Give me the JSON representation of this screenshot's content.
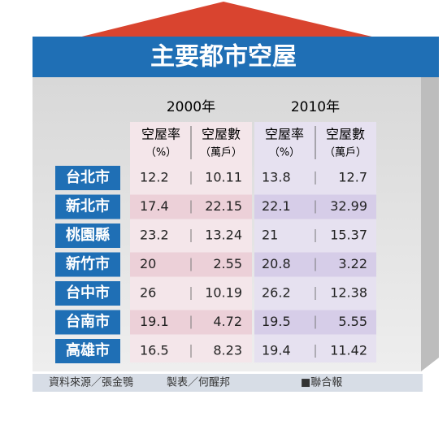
{
  "title": "主要都市空屋",
  "table": {
    "groups": [
      "2000年",
      "2010年"
    ],
    "columns": [
      {
        "name": "空屋率",
        "unit": "（%）"
      },
      {
        "name": "空屋數",
        "unit": "（萬戶）"
      },
      {
        "name": "空屋率",
        "unit": "（%）"
      },
      {
        "name": "空屋數",
        "unit": "（萬戶）"
      }
    ],
    "rows": [
      [
        "台北市",
        12.2,
        10.11,
        13.8,
        12.7
      ],
      [
        "新北市",
        17.4,
        22.15,
        22.1,
        32.99
      ],
      [
        "桃園縣",
        23.2,
        13.24,
        21,
        15.37
      ],
      [
        "新竹市",
        20,
        2.55,
        20.8,
        3.22
      ],
      [
        "台中市",
        26,
        10.19,
        26.2,
        12.38
      ],
      [
        "台南市",
        19.1,
        4.72,
        19.5,
        5.55
      ],
      [
        "高雄市",
        16.5,
        8.23,
        19.4,
        11.42
      ]
    ]
  },
  "footer": {
    "source": "資料來源／張金鶚",
    "maker": "製表／何醒邦",
    "publisher": "■聯合報"
  }
}
